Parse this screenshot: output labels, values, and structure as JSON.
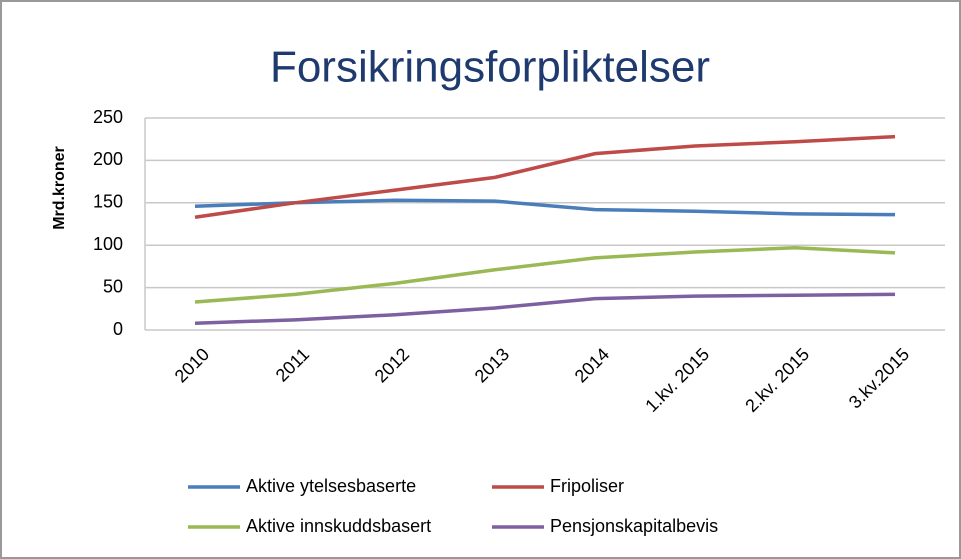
{
  "chart_data": {
    "type": "line",
    "title": "Forsikringsforpliktelser",
    "y_label": "Mrd.kroner",
    "categories": [
      "2010",
      "2011",
      "2012",
      "2013",
      "2014",
      "1.kv. 2015",
      "2.kv. 2015",
      "3.kv.2015"
    ],
    "series": [
      {
        "name": "Aktive ytelsesbaserte",
        "color": "#4a7ebb",
        "values": [
          146,
          150,
          153,
          152,
          142,
          140,
          137,
          136
        ]
      },
      {
        "name": "Fripoliser",
        "color": "#be4b48",
        "values": [
          133,
          150,
          165,
          180,
          208,
          217,
          222,
          228
        ]
      },
      {
        "name": "Aktive innskuddsbasert",
        "color": "#98b954",
        "values": [
          33,
          42,
          55,
          71,
          85,
          92,
          97,
          91
        ]
      },
      {
        "name": "Pensjonskapitalbevis",
        "color": "#7d60a0",
        "values": [
          8,
          12,
          18,
          26,
          37,
          40,
          41,
          42
        ]
      }
    ],
    "ylim": [
      0,
      250
    ],
    "yticks": [
      0,
      50,
      100,
      150,
      200,
      250
    ],
    "grid": true,
    "legend": "bottom"
  }
}
